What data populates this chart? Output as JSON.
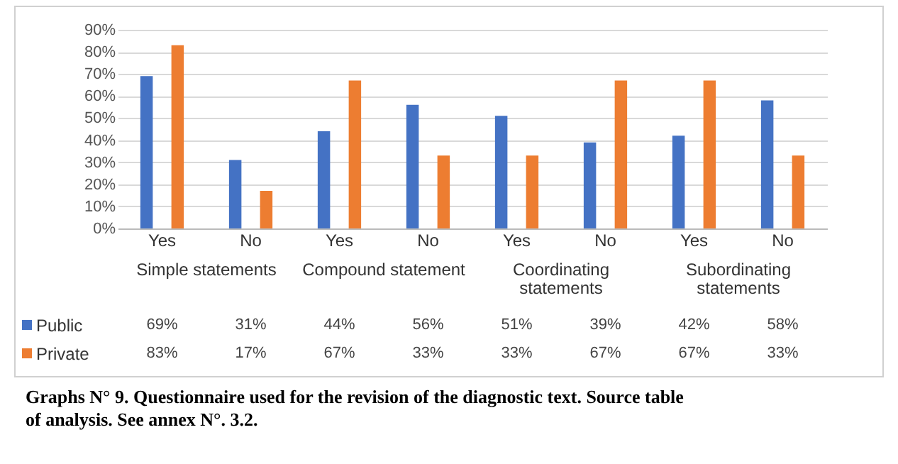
{
  "chart_data": {
    "type": "bar",
    "categories": [
      "Yes",
      "No",
      "Yes",
      "No",
      "Yes",
      "No",
      "Yes",
      "No"
    ],
    "series": [
      {
        "name": "Public",
        "color": "#4472c4",
        "values": [
          69,
          31,
          44,
          56,
          51,
          39,
          42,
          58
        ],
        "value_labels": [
          "69%",
          "31%",
          "44%",
          "56%",
          "51%",
          "39%",
          "42%",
          "58%"
        ]
      },
      {
        "name": "Private",
        "color": "#ed7d31",
        "values": [
          83,
          17,
          67,
          33,
          33,
          67,
          67,
          33
        ],
        "value_labels": [
          "83%",
          "17%",
          "67%",
          "33%",
          "33%",
          "67%",
          "67%",
          "33%"
        ]
      }
    ],
    "ylim": [
      0,
      90
    ],
    "yticks": [
      {
        "value": 0,
        "label": "0%"
      },
      {
        "value": 10,
        "label": "10%"
      },
      {
        "value": 20,
        "label": "20%"
      },
      {
        "value": 30,
        "label": "30%"
      },
      {
        "value": 40,
        "label": "40%"
      },
      {
        "value": 50,
        "label": "50%"
      },
      {
        "value": 60,
        "label": "60%"
      },
      {
        "value": 70,
        "label": "70%"
      },
      {
        "value": 80,
        "label": "80%"
      },
      {
        "value": 90,
        "label": "90%"
      }
    ],
    "grid": "y",
    "legend": "bottom left",
    "annotations": [
      "Simple statements",
      "Compound statement",
      "Coordinating statements",
      "Subordinating statements",
      "Graphs N° 9. Questionnaire used for the revision of the diagnostic text. Source table of analysis. See annex N°. 3.2."
    ]
  }
}
